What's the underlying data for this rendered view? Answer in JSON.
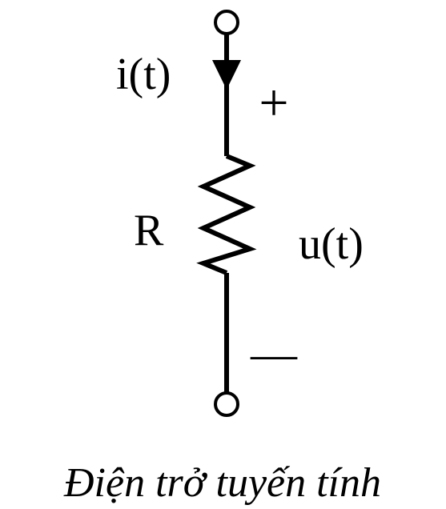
{
  "current_label": "i(t)",
  "plus_sign": "+",
  "resistor_label": "R",
  "voltage_label": "u(t)",
  "minus_sign": "—",
  "caption": "Điện trở tuyến tính",
  "colors": {
    "stroke": "#000000",
    "background": "#ffffff"
  }
}
